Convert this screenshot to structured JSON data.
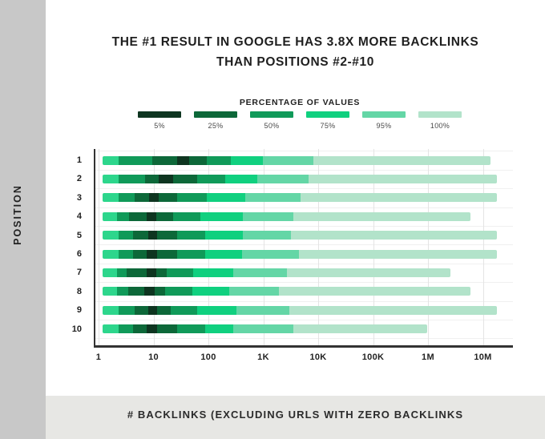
{
  "page": {
    "title_line1": "THE #1 RESULT IN GOOGLE HAS 3.8X MORE BACKLINKS",
    "title_line2": "THAN POSITIONS #2-#10",
    "y_axis_label": "POSITION",
    "x_axis_label": "# BACKLINKS (EXCLUDING URLS WITH ZERO BACKLINKS"
  },
  "legend": {
    "title": "PERCENTAGE OF VALUES",
    "items": [
      {
        "label": "5%",
        "color": "#0e3520"
      },
      {
        "label": "25%",
        "color": "#0d6839"
      },
      {
        "label": "50%",
        "color": "#109a59"
      },
      {
        "label": "75%",
        "color": "#10d07f"
      },
      {
        "label": "95%",
        "color": "#64d6a6"
      },
      {
        "label": "100%",
        "color": "#b2e3ca"
      }
    ]
  },
  "chart_data": {
    "type": "bar",
    "orientation": "horizontal",
    "x_scale": "log10",
    "title": "THE #1 RESULT IN GOOGLE HAS 3.8X MORE BACKLINKS THAN POSITIONS #2-#10",
    "xlabel": "# BACKLINKS (EXCLUDING URLS WITH ZERO BACKLINKS",
    "ylabel": "POSITION",
    "x_ticks": [
      "1",
      "10",
      "100",
      "1K",
      "10K",
      "100K",
      "1M",
      "10M"
    ],
    "x_tick_values": [
      1,
      10,
      100,
      1000,
      10000,
      100000,
      1000000,
      10000000
    ],
    "x_range_log10": [
      0,
      7.45
    ],
    "grid": true,
    "legend_position": "top",
    "categories": [
      "1",
      "2",
      "3",
      "4",
      "5",
      "6",
      "7",
      "8",
      "9",
      "10"
    ],
    "palette": {
      "start": "#2dd68c",
      "p5": "#0e3520",
      "p25": "#0d6839",
      "p50": "#109a59",
      "p75": "#10d07f",
      "p95": "#64d6a6",
      "p100": "#b2e3ca"
    },
    "segment_color_order": [
      "start",
      "p50",
      "p25",
      "p5",
      "p25",
      "p50",
      "p75",
      "p95",
      "p100"
    ],
    "rows": [
      {
        "position": "1",
        "bounds_log10": [
          0.07,
          0.36,
          0.98,
          1.43,
          1.65,
          1.97,
          2.41,
          2.99,
          3.91,
          7.14
        ],
        "bounds_backlinks_approx": [
          1.2,
          2.3,
          9.5,
          27,
          45,
          93,
          260,
          980,
          8100,
          14000000
        ]
      },
      {
        "position": "2",
        "bounds_log10": [
          0.07,
          0.36,
          0.85,
          1.09,
          1.36,
          1.8,
          2.31,
          2.89,
          3.82,
          7.26
        ],
        "bounds_backlinks_approx": [
          1.2,
          2.3,
          7.1,
          12,
          23,
          63,
          204,
          776,
          6600,
          18000000
        ]
      },
      {
        "position": "3",
        "bounds_log10": [
          0.07,
          0.36,
          0.66,
          0.92,
          1.09,
          1.43,
          1.97,
          2.67,
          3.68,
          7.26
        ],
        "bounds_backlinks_approx": [
          1.2,
          2.3,
          4.6,
          8.3,
          12,
          27,
          93,
          468,
          4800,
          18000000
        ]
      },
      {
        "position": "4",
        "bounds_log10": [
          0.07,
          0.34,
          0.55,
          0.88,
          1.05,
          1.36,
          1.85,
          2.63,
          3.55,
          6.77
        ],
        "bounds_backlinks_approx": [
          1.2,
          2.2,
          3.5,
          7.6,
          11,
          23,
          71,
          427,
          3500,
          5900000
        ]
      },
      {
        "position": "5",
        "bounds_log10": [
          0.07,
          0.36,
          0.63,
          0.91,
          1.07,
          1.43,
          1.94,
          2.63,
          3.5,
          7.26
        ],
        "bounds_backlinks_approx": [
          1.2,
          2.3,
          4.3,
          8.1,
          12,
          27,
          87,
          427,
          3200,
          18000000
        ]
      },
      {
        "position": "6",
        "bounds_log10": [
          0.07,
          0.36,
          0.63,
          0.88,
          1.07,
          1.43,
          1.94,
          2.61,
          3.65,
          7.26
        ],
        "bounds_backlinks_approx": [
          1.2,
          2.3,
          4.3,
          7.6,
          12,
          27,
          87,
          407,
          4500,
          18000000
        ]
      },
      {
        "position": "7",
        "bounds_log10": [
          0.07,
          0.34,
          0.51,
          0.88,
          1.05,
          1.24,
          1.72,
          2.45,
          3.43,
          6.41
        ],
        "bounds_backlinks_approx": [
          1.2,
          2.2,
          3.2,
          7.6,
          11,
          17,
          52,
          282,
          2700,
          2600000
        ]
      },
      {
        "position": "8",
        "bounds_log10": [
          0.07,
          0.34,
          0.54,
          0.83,
          1.02,
          1.21,
          1.71,
          2.38,
          3.28,
          6.77
        ],
        "bounds_backlinks_approx": [
          1.2,
          2.2,
          3.5,
          6.8,
          10,
          16,
          51,
          240,
          1900,
          5900000
        ]
      },
      {
        "position": "9",
        "bounds_log10": [
          0.07,
          0.36,
          0.66,
          0.91,
          1.07,
          1.31,
          1.8,
          2.51,
          3.47,
          7.26
        ],
        "bounds_backlinks_approx": [
          1.2,
          2.3,
          4.6,
          8.1,
          12,
          20,
          63,
          324,
          3000,
          18000000
        ]
      },
      {
        "position": "10",
        "bounds_log10": [
          0.07,
          0.36,
          0.63,
          0.88,
          1.07,
          1.43,
          1.94,
          2.45,
          3.55,
          5.99
        ],
        "bounds_backlinks_approx": [
          1.2,
          2.3,
          4.3,
          7.6,
          12,
          27,
          87,
          282,
          3500,
          980000
        ]
      }
    ]
  }
}
